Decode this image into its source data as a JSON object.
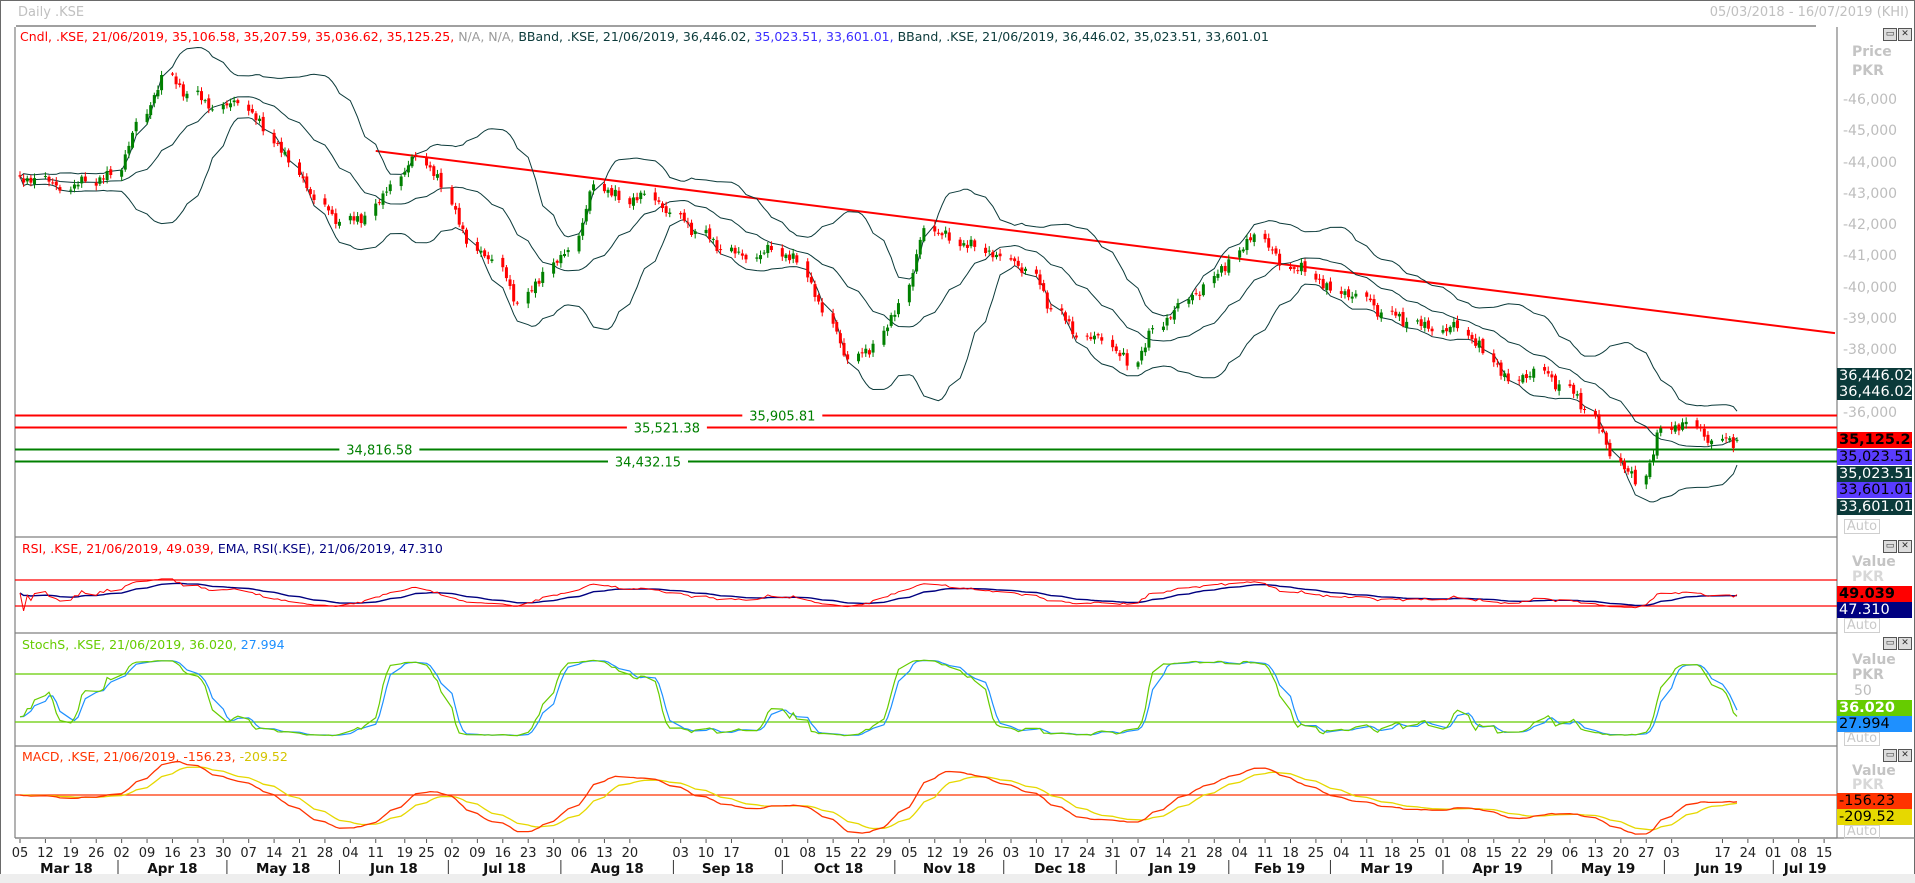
{
  "window": {
    "title": "Daily .KSE",
    "date_range": "05/03/2018 - 16/07/2019 (KHI)",
    "auto_label": "Auto"
  },
  "main_pane": {
    "legend": {
      "candle": "Cndl, .KSE, 21/06/2019, 35,106.58, 35,207.59, 35,036.62, 35,125.25,",
      "na": " N/A, N/A,",
      "bband1_a": " BBand, .KSE, 21/06/2019, 36,446.02,",
      "bband1_b": " 35,023.51, 33,601.01,",
      "bband2": " BBand, .KSE, 21/06/2019, 36,446.02, 35,023.51, 33,601.01"
    },
    "axis_title": "Price",
    "axis_unit": "PKR",
    "axis_ticks": [
      "46,000",
      "45,000",
      "44,000",
      "43,000",
      "42,000",
      "41,000",
      "40,000",
      "39,000",
      "38,000",
      "36,000"
    ],
    "value_tags": [
      {
        "text": "36,446.02",
        "color": "#0b3a3a",
        "fg": "#ffffff"
      },
      {
        "text": "36,446.02",
        "color": "#0b3a3a",
        "fg": "#ffffff"
      },
      {
        "text": "35,125.25",
        "color": "#ff0000",
        "fg": "#000000"
      },
      {
        "text": "35,023.51",
        "color": "#5a3cff",
        "fg": "#000000"
      },
      {
        "text": "35,023.51",
        "color": "#0b3a3a",
        "fg": "#ffffff"
      },
      {
        "text": "33,601.01",
        "color": "#5a3cff",
        "fg": "#000000"
      },
      {
        "text": "33,601.01",
        "color": "#0b3a3a",
        "fg": "#ffffff"
      }
    ],
    "hlines": [
      {
        "price": 35905.81,
        "label": "35,905.81",
        "color": "#ff0000",
        "labelColor": "#008000",
        "labelAt": "2018-10-01"
      },
      {
        "price": 35521.38,
        "label": "35,521.38",
        "color": "#ff0000",
        "labelColor": "#008000",
        "labelAt": "2018-09-24"
      },
      {
        "price": 34816.58,
        "label": "34,816.58",
        "color": "#008000",
        "labelColor": "#008000",
        "labelAt": "2018-06-12"
      },
      {
        "price": 34432.15,
        "label": "34,432.15",
        "color": "#008000",
        "labelColor": "#008000",
        "labelAt": "2018-08-25"
      }
    ],
    "trendline": {
      "color": "#ff0000",
      "from": {
        "date": "2018-06-11",
        "price": 44370
      },
      "to": {
        "date": "2019-07-18",
        "price": 38540
      }
    }
  },
  "rsi_pane": {
    "legend_rsi": "RSI, .KSE, 21/06/2019, 49.039,",
    "legend_ema": " EMA, RSI(.KSE), 21/06/2019, 47.310",
    "axis_title": "Value",
    "axis_unit": "PKR",
    "levels": [
      70,
      30
    ],
    "tags": [
      {
        "text": "49.039",
        "color": "#ff0000",
        "fg": "#000000"
      },
      {
        "text": "47.310",
        "color": "#000080",
        "fg": "#ffffff"
      }
    ]
  },
  "stoch_pane": {
    "legend_k": "StochS, .KSE, 21/06/2019, 36.020,",
    "legend_d": " 27.994",
    "axis_title": "Value",
    "axis_unit": "PKR",
    "axis_tick": "50",
    "levels": [
      80,
      20
    ],
    "tags": [
      {
        "text": "36.020",
        "color": "#66cc00",
        "fg": "#ffffff"
      },
      {
        "text": "27.994",
        "color": "#1e90ff",
        "fg": "#000000"
      }
    ]
  },
  "macd_pane": {
    "legend_macd": "MACD, .KSE, 21/06/2019, -156.23,",
    "legend_signal": " -209.52",
    "axis_title": "Value",
    "axis_unit": "PKR",
    "tags": [
      {
        "text": "-156.23",
        "color": "#ff3300",
        "fg": "#000000"
      },
      {
        "text": "-209.52",
        "color": "#e6d800",
        "fg": "#000000"
      }
    ]
  },
  "colors": {
    "up": "#008000",
    "down": "#ff0000",
    "bband": "#0b3a3a",
    "rsi": "#ff0000",
    "ema": "#000080",
    "stoch_k": "#66cc00",
    "stoch_d": "#1e90ff",
    "macd": "#ff3300",
    "signal": "#e6d800"
  },
  "x_axis": {
    "day_ticks": [
      [
        "05",
        "2018-03-05"
      ],
      [
        "12",
        "2018-03-12"
      ],
      [
        "19",
        "2018-03-19"
      ],
      [
        "26",
        "2018-03-26"
      ],
      [
        "02",
        "2018-04-02"
      ],
      [
        "09",
        "2018-04-09"
      ],
      [
        "16",
        "2018-04-16"
      ],
      [
        "23",
        "2018-04-23"
      ],
      [
        "30",
        "2018-04-30"
      ],
      [
        "07",
        "2018-05-07"
      ],
      [
        "14",
        "2018-05-14"
      ],
      [
        "21",
        "2018-05-21"
      ],
      [
        "28",
        "2018-05-28"
      ],
      [
        "04",
        "2018-06-04"
      ],
      [
        "11",
        "2018-06-11"
      ],
      [
        "19",
        "2018-06-19"
      ],
      [
        "25",
        "2018-06-25"
      ],
      [
        "02",
        "2018-07-02"
      ],
      [
        "09",
        "2018-07-09"
      ],
      [
        "16",
        "2018-07-16"
      ],
      [
        "23",
        "2018-07-23"
      ],
      [
        "30",
        "2018-07-30"
      ],
      [
        "06",
        "2018-08-06"
      ],
      [
        "13",
        "2018-08-13"
      ],
      [
        "20",
        "2018-08-20"
      ],
      [
        "03",
        "2018-09-03"
      ],
      [
        "10",
        "2018-09-10"
      ],
      [
        "17",
        "2018-09-17"
      ],
      [
        "01",
        "2018-10-01"
      ],
      [
        "08",
        "2018-10-08"
      ],
      [
        "15",
        "2018-10-15"
      ],
      [
        "22",
        "2018-10-22"
      ],
      [
        "29",
        "2018-10-29"
      ],
      [
        "05",
        "2018-11-05"
      ],
      [
        "12",
        "2018-11-12"
      ],
      [
        "19",
        "2018-11-19"
      ],
      [
        "26",
        "2018-11-26"
      ],
      [
        "03",
        "2018-12-03"
      ],
      [
        "10",
        "2018-12-10"
      ],
      [
        "17",
        "2018-12-17"
      ],
      [
        "24",
        "2018-12-24"
      ],
      [
        "31",
        "2018-12-31"
      ],
      [
        "07",
        "2019-01-07"
      ],
      [
        "14",
        "2019-01-14"
      ],
      [
        "21",
        "2019-01-21"
      ],
      [
        "28",
        "2019-01-28"
      ],
      [
        "04",
        "2019-02-04"
      ],
      [
        "11",
        "2019-02-11"
      ],
      [
        "18",
        "2019-02-18"
      ],
      [
        "25",
        "2019-02-25"
      ],
      [
        "04",
        "2019-03-04"
      ],
      [
        "11",
        "2019-03-11"
      ],
      [
        "18",
        "2019-03-18"
      ],
      [
        "25",
        "2019-03-25"
      ],
      [
        "01",
        "2019-04-01"
      ],
      [
        "08",
        "2019-04-08"
      ],
      [
        "15",
        "2019-04-15"
      ],
      [
        "22",
        "2019-04-22"
      ],
      [
        "29",
        "2019-04-29"
      ],
      [
        "06",
        "2019-05-06"
      ],
      [
        "13",
        "2019-05-13"
      ],
      [
        "20",
        "2019-05-20"
      ],
      [
        "27",
        "2019-05-27"
      ],
      [
        "03",
        "2019-06-03"
      ],
      [
        "17",
        "2019-06-17"
      ],
      [
        "24",
        "2019-06-24"
      ],
      [
        "01",
        "2019-07-01"
      ],
      [
        "08",
        "2019-07-08"
      ],
      [
        "15",
        "2019-07-15"
      ]
    ],
    "months": [
      [
        "Mar 18",
        "2018-03-01"
      ],
      [
        "Apr 18",
        "2018-04-01"
      ],
      [
        "May 18",
        "2018-05-01"
      ],
      [
        "Jun 18",
        "2018-06-01"
      ],
      [
        "Jul 18",
        "2018-07-01"
      ],
      [
        "Aug 18",
        "2018-08-01"
      ],
      [
        "Sep 18",
        "2018-09-01"
      ],
      [
        "Oct 18",
        "2018-10-01"
      ],
      [
        "Nov 18",
        "2018-11-01"
      ],
      [
        "Dec 18",
        "2018-12-01"
      ],
      [
        "Jan 19",
        "2019-01-01"
      ],
      [
        "Feb 19",
        "2019-02-01"
      ],
      [
        "Mar 19",
        "2019-03-01"
      ],
      [
        "Apr 19",
        "2019-04-01"
      ],
      [
        "May 19",
        "2019-05-01"
      ],
      [
        "Jun 19",
        "2019-06-01"
      ],
      [
        "Jul 19",
        "2019-07-01"
      ]
    ]
  },
  "chart_data": {
    "type": "candlestick",
    "title": "Daily .KSE",
    "ylabel": "Price PKR",
    "ylim": [
      32000,
      47500
    ],
    "xlim": [
      "2018-03-05",
      "2019-07-16"
    ],
    "last_bar": {
      "date": "21/06/2019",
      "open": 35106.58,
      "high": 35207.59,
      "low": 35036.62,
      "close": 35125.25
    },
    "weeks": [
      "2018-03-05",
      "2018-03-12",
      "2018-03-19",
      "2018-03-26",
      "2018-04-02",
      "2018-04-09",
      "2018-04-16",
      "2018-04-23",
      "2018-04-30",
      "2018-05-07",
      "2018-05-14",
      "2018-05-21",
      "2018-05-28",
      "2018-06-04",
      "2018-06-11",
      "2018-06-18",
      "2018-06-25",
      "2018-07-02",
      "2018-07-09",
      "2018-07-16",
      "2018-07-23",
      "2018-07-30",
      "2018-08-06",
      "2018-08-13",
      "2018-08-20",
      "2018-08-27",
      "2018-09-03",
      "2018-09-10",
      "2018-09-17",
      "2018-09-24",
      "2018-10-01",
      "2018-10-08",
      "2018-10-15",
      "2018-10-22",
      "2018-10-29",
      "2018-11-05",
      "2018-11-12",
      "2018-11-19",
      "2018-11-26",
      "2018-12-03",
      "2018-12-10",
      "2018-12-17",
      "2018-12-24",
      "2018-12-31",
      "2019-01-07",
      "2019-01-14",
      "2019-01-21",
      "2019-01-28",
      "2019-02-04",
      "2019-02-11",
      "2019-02-18",
      "2019-02-25",
      "2019-03-04",
      "2019-03-11",
      "2019-03-18",
      "2019-03-25",
      "2019-04-01",
      "2019-04-08",
      "2019-04-15",
      "2019-04-22",
      "2019-04-29",
      "2019-05-06",
      "2019-05-13",
      "2019-05-20",
      "2019-05-27",
      "2019-06-03",
      "2019-06-10",
      "2019-06-17"
    ],
    "weekly_close": [
      43500,
      43100,
      43400,
      43600,
      45300,
      46800,
      46200,
      45700,
      45900,
      45000,
      44000,
      42800,
      42100,
      42300,
      43300,
      44200,
      43200,
      41400,
      40900,
      39500,
      40500,
      41200,
      43300,
      42800,
      43000,
      42400,
      41800,
      41200,
      40900,
      41200,
      40800,
      39200,
      37700,
      38200,
      39500,
      41900,
      41500,
      41300,
      41000,
      40600,
      39300,
      38400,
      38300,
      37500,
      38700,
      39500,
      40100,
      40900,
      41700,
      40700,
      40500,
      39900,
      39800,
      39200,
      38900,
      38600,
      38700,
      37900,
      37000,
      37400,
      36900,
      36100,
      34600,
      33700,
      35500,
      35700,
      35100,
      35125.25
    ],
    "indicators": {
      "bollinger": {
        "upper": 36446.02,
        "middle": 35023.51,
        "lower": 33601.01
      },
      "rsi": 49.039,
      "rsi_ema": 47.31,
      "rsi_levels": [
        30,
        70
      ],
      "stoch_k": 36.02,
      "stoch_d": 27.994,
      "stoch_levels": [
        20,
        80
      ],
      "macd": -156.23,
      "macd_signal": -209.52
    }
  }
}
